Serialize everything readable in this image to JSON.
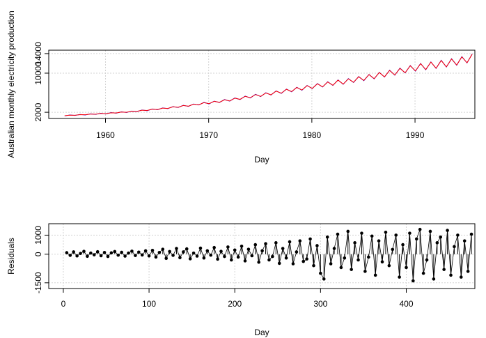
{
  "chart_data": [
    {
      "type": "line",
      "xlabel": "Day",
      "ylabel": "Australian monthly electricity production",
      "x": [
        1956.04,
        1956.54,
        1957.04,
        1957.54,
        1958.04,
        1958.54,
        1959.04,
        1959.54,
        1960.04,
        1960.54,
        1961.04,
        1961.54,
        1962.04,
        1962.54,
        1963.04,
        1963.54,
        1964.04,
        1964.54,
        1965.04,
        1965.54,
        1966.04,
        1966.54,
        1967.04,
        1967.54,
        1968.04,
        1968.54,
        1969.04,
        1969.54,
        1970.04,
        1970.54,
        1971.04,
        1971.54,
        1972.04,
        1972.54,
        1973.04,
        1973.54,
        1974.04,
        1974.54,
        1975.04,
        1975.54,
        1976.04,
        1976.54,
        1977.04,
        1977.54,
        1978.04,
        1978.54,
        1979.04,
        1979.54,
        1980.04,
        1980.54,
        1981.04,
        1981.54,
        1982.04,
        1982.54,
        1983.04,
        1983.54,
        1984.04,
        1984.54,
        1985.04,
        1985.54,
        1986.04,
        1986.54,
        1987.04,
        1987.54,
        1988.04,
        1988.54,
        1989.04,
        1989.54,
        1990.04,
        1990.54,
        1991.04,
        1991.54,
        1992.04,
        1992.54,
        1993.04,
        1993.54,
        1994.04,
        1994.54,
        1995.04,
        1995.54
      ],
      "series": [
        {
          "color": "#0000ff",
          "values": [
            1256,
            1445,
            1349,
            1552,
            1451,
            1669,
            1562,
            1798,
            1674,
            1926,
            1814,
            2087,
            1953,
            2247,
            2139,
            2461,
            2325,
            2675,
            2511,
            2889,
            2744,
            3157,
            2976,
            3424,
            3209,
            3692,
            3488,
            4013,
            3720,
            4280,
            3999,
            4601,
            4278,
            4922,
            4604,
            5297,
            4929,
            5671,
            5208,
            5992,
            5534,
            6367,
            5859,
            6741,
            6185,
            7116,
            6510,
            7490,
            6836,
            7865,
            7161,
            8239,
            7487,
            8614,
            7719,
            8881,
            8091,
            9309,
            8463,
            9737,
            8835,
            10165,
            9207,
            10593,
            9579,
            11021,
            10044,
            11556,
            10416,
            11984,
            10695,
            12305,
            10974,
            12626,
            11253,
            12947,
            11625,
            13375,
            12090,
            13910
          ]
        },
        {
          "color": "#ff0000",
          "values": [
            1296,
            1405,
            1389,
            1512,
            1491,
            1629,
            1602,
            1758,
            1714,
            1886,
            1854,
            2047,
            1993,
            2207,
            2179,
            2421,
            2365,
            2635,
            2551,
            2849,
            2784,
            3117,
            3016,
            3384,
            3249,
            3652,
            3528,
            3973,
            3760,
            4240,
            4039,
            4561,
            4318,
            4882,
            4644,
            5257,
            4969,
            5631,
            5248,
            5952,
            5574,
            6327,
            5899,
            6701,
            6225,
            7076,
            6550,
            7450,
            6876,
            7825,
            7201,
            8199,
            7527,
            8574,
            7759,
            8841,
            8131,
            9269,
            8503,
            9697,
            8875,
            10125,
            9247,
            10553,
            9619,
            10981,
            10084,
            11516,
            10456,
            11944,
            10735,
            12265,
            11014,
            12586,
            11293,
            12907,
            11665,
            13335,
            12130,
            13870
          ]
        }
      ],
      "xlim": [
        1954.5,
        1995.8
      ],
      "xticks": [
        1960,
        1970,
        1980,
        1990
      ],
      "ylim": [
        730,
        14700
      ],
      "yticks": [
        2000,
        10000,
        14000
      ],
      "grid": true
    },
    {
      "type": "stem",
      "xlabel": "Day",
      "ylabel": "Residuals",
      "color": "#000000",
      "x": [
        4,
        8,
        12,
        16,
        20,
        24,
        28,
        32,
        36,
        40,
        44,
        48,
        52,
        56,
        60,
        64,
        68,
        72,
        76,
        80,
        84,
        88,
        92,
        96,
        100,
        104,
        108,
        112,
        116,
        120,
        124,
        128,
        132,
        136,
        140,
        144,
        148,
        152,
        156,
        160,
        164,
        168,
        172,
        176,
        180,
        184,
        188,
        192,
        196,
        200,
        204,
        208,
        212,
        216,
        220,
        224,
        228,
        232,
        236,
        240,
        244,
        248,
        252,
        256,
        260,
        264,
        268,
        272,
        276,
        280,
        284,
        288,
        292,
        296,
        300,
        304,
        308,
        312,
        316,
        320,
        324,
        328,
        332,
        336,
        340,
        344,
        348,
        352,
        356,
        360,
        364,
        368,
        372,
        376,
        380,
        384,
        388,
        392,
        396,
        400,
        404,
        408,
        412,
        416,
        420,
        424,
        428,
        432,
        436,
        440,
        444,
        448,
        452,
        456,
        460,
        464,
        468,
        472,
        476
      ],
      "values": [
        80,
        -60,
        120,
        -90,
        40,
        150,
        -110,
        60,
        -30,
        130,
        -80,
        90,
        -120,
        70,
        140,
        -50,
        100,
        -100,
        60,
        160,
        -70,
        110,
        -40,
        180,
        -90,
        200,
        -150,
        90,
        260,
        -220,
        140,
        -60,
        300,
        -180,
        120,
        280,
        -240,
        60,
        -100,
        320,
        -200,
        180,
        -50,
        350,
        -260,
        150,
        -120,
        380,
        -300,
        220,
        -150,
        420,
        -350,
        260,
        -80,
        500,
        -420,
        180,
        550,
        -300,
        -120,
        600,
        -480,
        300,
        -200,
        650,
        -500,
        120,
        700,
        -380,
        -250,
        800,
        -600,
        450,
        -1000,
        -1300,
        900,
        -500,
        300,
        1050,
        -700,
        -200,
        1200,
        -800,
        600,
        -300,
        1100,
        -900,
        -150,
        950,
        -1100,
        700,
        -400,
        1150,
        -600,
        250,
        1000,
        -1200,
        500,
        -700,
        1100,
        -1400,
        800,
        1300,
        -1000,
        -300,
        1200,
        -1300,
        600,
        900,
        -800,
        1250,
        -1100,
        400,
        1000,
        -1200,
        700,
        -900,
        1050
      ],
      "xlim": [
        -17,
        480
      ],
      "xticks": [
        0,
        100,
        200,
        300,
        400
      ],
      "ylim": [
        -1800,
        1600
      ],
      "yticks": [
        -1500,
        0,
        1000
      ],
      "grid": true
    }
  ]
}
